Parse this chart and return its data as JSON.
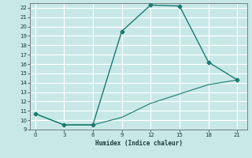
{
  "xlabel": "Humidex (Indice chaleur)",
  "x": [
    0,
    3,
    6,
    9,
    12,
    15,
    18,
    21
  ],
  "y_upper": [
    10.7,
    9.5,
    9.5,
    19.5,
    22.3,
    22.2,
    16.2,
    14.3
  ],
  "y_lower": [
    10.7,
    9.5,
    9.5,
    10.3,
    11.8,
    12.8,
    13.8,
    14.3
  ],
  "line_color": "#1a7a6e",
  "bg_color": "#c8e8e8",
  "grid_major_color": "#aacccc",
  "grid_minor_color": "#e0f0f0",
  "xlim": [
    -0.5,
    22
  ],
  "ylim": [
    9,
    22.5
  ],
  "xticks": [
    0,
    3,
    6,
    9,
    12,
    15,
    18,
    21
  ],
  "yticks": [
    9,
    10,
    11,
    12,
    13,
    14,
    15,
    16,
    17,
    18,
    19,
    20,
    21,
    22
  ]
}
